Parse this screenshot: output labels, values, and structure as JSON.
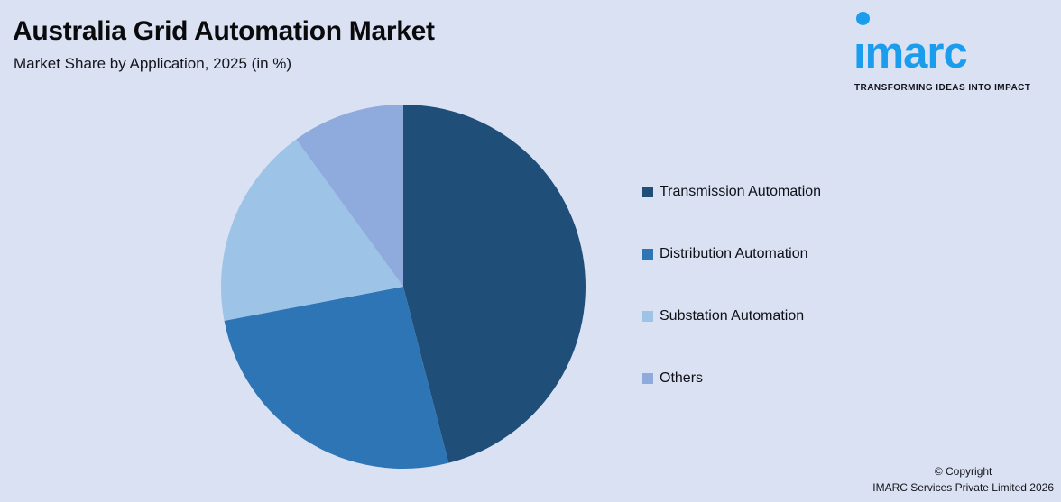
{
  "header": {
    "title": "Australia Grid Automation Market",
    "subtitle": "Market Share by Application, 2025 (in %)"
  },
  "logo": {
    "wordmark": "ımarc",
    "brand": "IMARC",
    "tagline": "TRANSFORMING IDEAS INTO IMPACT",
    "brand_color": "#1B9DEE"
  },
  "chart_data": {
    "type": "pie",
    "title": "Australia Grid Automation Market",
    "subtitle": "Market Share by Application, 2025 (in %)",
    "unit": "%",
    "labels": [
      "Transmission Automation",
      "Distribution Automation",
      "Substation Automation",
      "Others"
    ],
    "values": [
      46,
      26,
      18,
      10
    ],
    "colors": [
      "#1F4E79",
      "#2E75B6",
      "#9DC3E6",
      "#8FAADC"
    ],
    "start_angle": "top",
    "direction": "clockwise",
    "legend_position": "right",
    "data_labels_shown": false,
    "background_color": "#D9E1F2"
  },
  "footer": {
    "copyright_line1": "© Copyright",
    "copyright_line2": "IMARC Services Private Limited 2026"
  }
}
